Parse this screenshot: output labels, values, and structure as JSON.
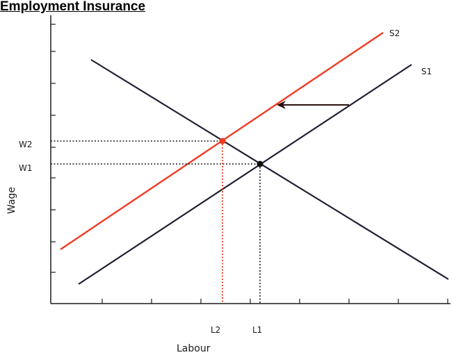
{
  "title": "Employment Insurance",
  "axes": {
    "y_label": "Wage",
    "x_label": "Labour"
  },
  "curves": {
    "supply_original": "S1",
    "supply_shifted": "S2"
  },
  "equilibria": {
    "wage_original": "W1",
    "wage_shifted": "W2",
    "labour_original": "L1",
    "labour_shifted": "L2"
  },
  "colors": {
    "shifted_supply": "#f03a22",
    "original_lines": "#1f1f33",
    "point_shifted": "#f03a22",
    "point_original": "#111111"
  }
}
